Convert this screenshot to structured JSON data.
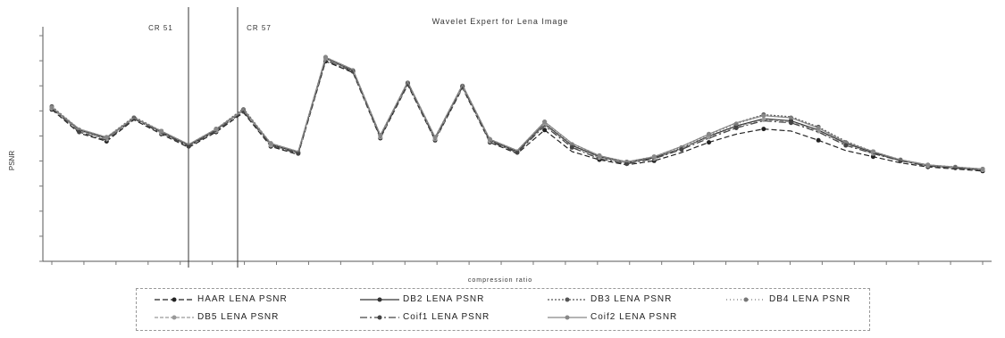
{
  "chart_data": {
    "type": "line",
    "title": "Wavelet Expert for Lena Image",
    "xlabel": "compression ratio",
    "ylabel": "PSNR",
    "annotations": [
      "CR 51",
      "CR 57"
    ],
    "x": [
      1,
      2,
      3,
      4,
      5,
      6,
      7,
      8,
      9,
      10,
      11,
      12,
      13,
      14,
      15,
      16,
      17,
      18,
      19,
      20,
      21,
      22,
      23,
      24,
      25,
      26,
      27,
      28,
      29,
      30,
      31,
      32,
      33,
      34,
      35
    ],
    "series": [
      {
        "name": "HAAR LENA PSNR",
        "color": "#222222",
        "dash": "6,3",
        "values": [
          34.8,
          32.5,
          31.7,
          33.8,
          32.4,
          31.1,
          32.6,
          34.5,
          31.2,
          30.4,
          39.5,
          38.4,
          32.0,
          37.2,
          31.8,
          36.9,
          31.6,
          30.5,
          32.8,
          30.7,
          29.9,
          29.4,
          29.8,
          30.6,
          31.6,
          32.4,
          32.9,
          32.7,
          31.8,
          30.8,
          30.2,
          29.6,
          29.2,
          29.0,
          28.8
        ]
      },
      {
        "name": "DB2 LENA PSNR",
        "color": "#333333",
        "dash": "",
        "values": [
          35.0,
          32.8,
          32.0,
          34.0,
          32.6,
          31.3,
          32.8,
          34.8,
          31.4,
          30.6,
          39.8,
          38.6,
          32.2,
          37.4,
          32.0,
          37.1,
          31.8,
          30.7,
          33.4,
          31.3,
          30.2,
          29.6,
          30.1,
          31.0,
          32.2,
          33.2,
          33.9,
          33.7,
          32.8,
          31.5,
          30.6,
          29.8,
          29.3,
          29.1,
          28.9
        ]
      },
      {
        "name": "DB3 LENA PSNR",
        "color": "#555555",
        "dash": "2,2",
        "values": [
          35.1,
          32.9,
          32.1,
          34.1,
          32.7,
          31.4,
          32.9,
          34.9,
          31.5,
          30.7,
          39.9,
          38.7,
          32.3,
          37.5,
          32.1,
          37.2,
          31.9,
          30.8,
          33.6,
          31.5,
          30.3,
          29.7,
          30.2,
          31.2,
          32.4,
          33.5,
          34.3,
          34.1,
          33.1,
          31.7,
          30.7,
          29.9,
          29.4,
          29.2,
          29.0
        ]
      },
      {
        "name": "DB4 LENA PSNR",
        "color": "#777777",
        "dash": "1,3",
        "values": [
          35.0,
          32.8,
          32.0,
          34.0,
          32.6,
          31.3,
          32.8,
          34.8,
          31.4,
          30.6,
          39.8,
          38.6,
          32.2,
          37.4,
          32.0,
          37.1,
          31.8,
          30.7,
          33.5,
          31.4,
          30.2,
          29.7,
          30.2,
          31.1,
          32.3,
          33.4,
          34.2,
          34.0,
          33.0,
          31.6,
          30.7,
          29.9,
          29.4,
          29.2,
          29.0
        ]
      },
      {
        "name": "DB5 LENA PSNR",
        "color": "#999999",
        "dash": "4,2",
        "values": [
          34.9,
          32.7,
          31.9,
          33.9,
          32.5,
          31.2,
          32.7,
          34.7,
          31.3,
          30.5,
          39.7,
          38.5,
          32.1,
          37.3,
          31.9,
          37.0,
          31.7,
          30.6,
          33.3,
          31.2,
          30.1,
          29.6,
          30.0,
          31.0,
          32.1,
          33.1,
          33.8,
          33.6,
          32.7,
          31.4,
          30.5,
          29.8,
          29.3,
          29.1,
          28.9
        ]
      },
      {
        "name": "Coif1 LENA PSNR",
        "color": "#444444",
        "dash": "8,3,2,3",
        "values": [
          34.9,
          32.6,
          31.8,
          33.9,
          32.5,
          31.2,
          32.7,
          34.6,
          31.3,
          30.5,
          39.6,
          38.5,
          32.1,
          37.3,
          31.9,
          37.0,
          31.7,
          30.6,
          33.2,
          31.1,
          30.0,
          29.5,
          30.0,
          30.9,
          32.0,
          33.0,
          33.7,
          33.5,
          32.6,
          31.3,
          30.5,
          29.8,
          29.3,
          29.1,
          28.9
        ]
      },
      {
        "name": "Coif2 LENA PSNR",
        "color": "#888888",
        "dash": "",
        "values": [
          35.0,
          32.9,
          32.1,
          34.0,
          32.7,
          31.4,
          32.9,
          34.8,
          31.5,
          30.7,
          39.9,
          38.7,
          32.3,
          37.5,
          32.1,
          37.2,
          31.9,
          30.8,
          33.6,
          31.5,
          30.3,
          29.7,
          30.2,
          31.2,
          32.4,
          33.5,
          34.2,
          34.0,
          33.0,
          31.6,
          30.7,
          29.9,
          29.4,
          29.2,
          29.0
        ]
      }
    ],
    "grid": false,
    "legend": "bottom"
  }
}
